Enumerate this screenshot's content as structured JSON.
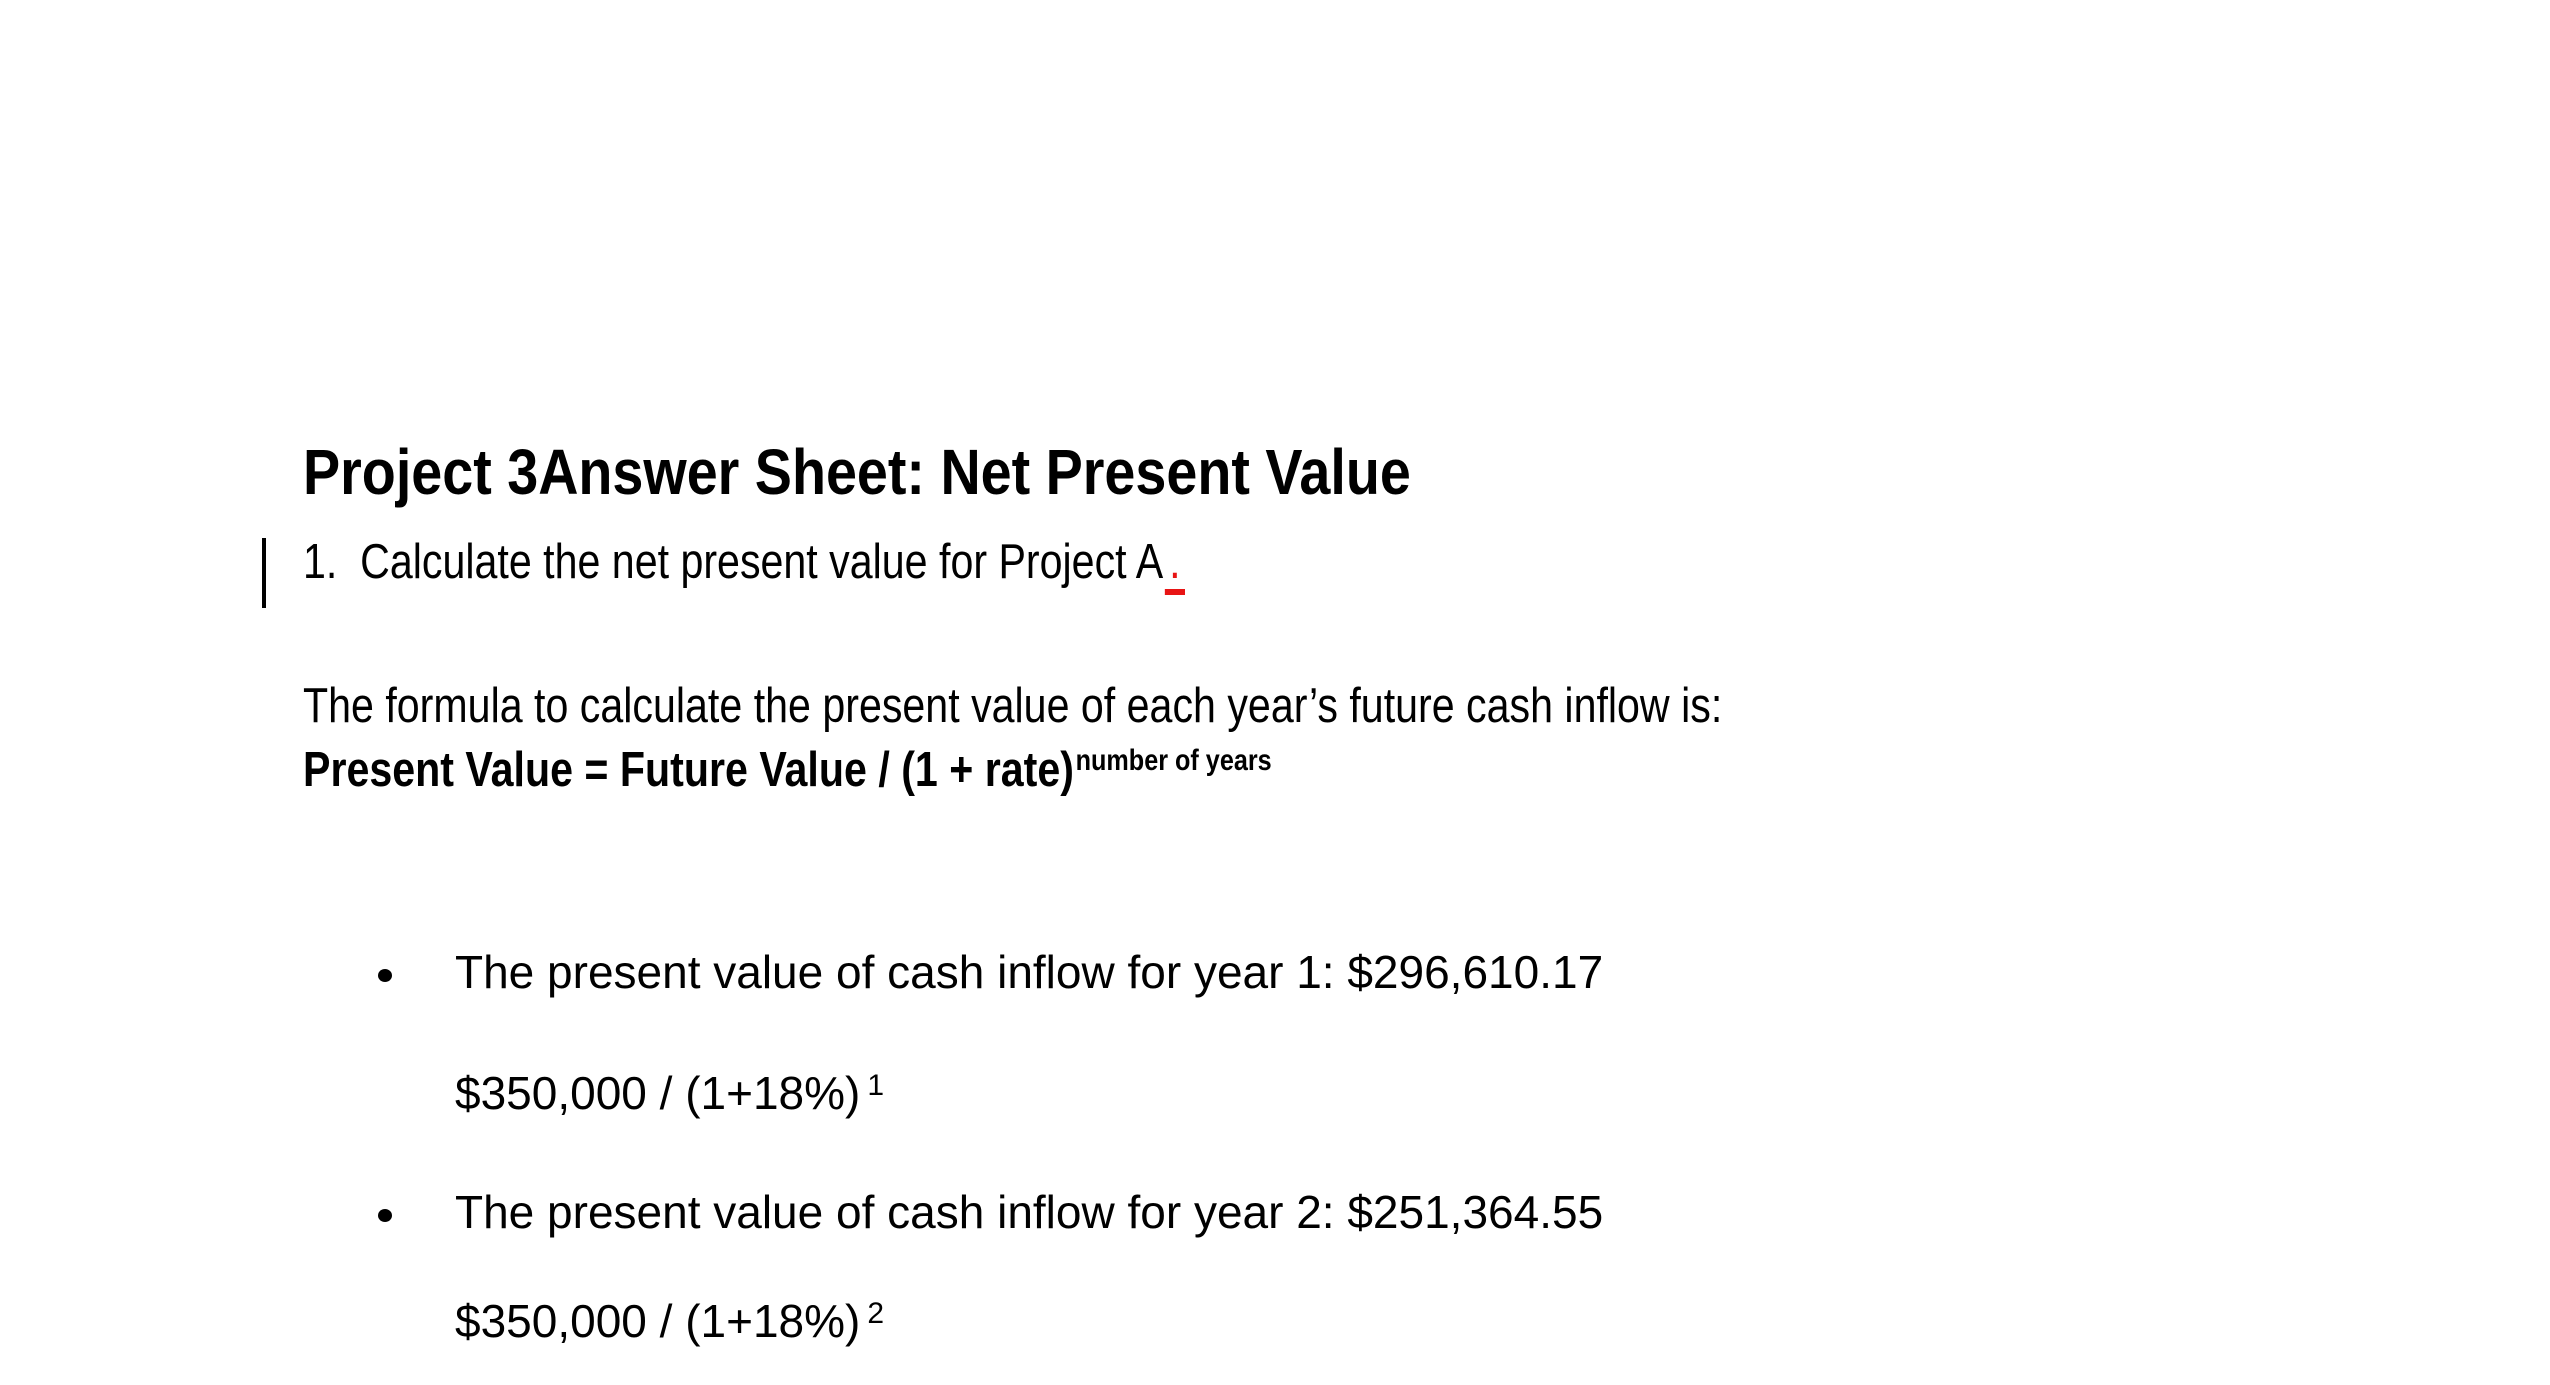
{
  "document": {
    "title": "Project 3Answer Sheet: Net Present Value",
    "item1": {
      "number": "1.",
      "text": "Calculate the net present value for Project A",
      "inserted_period": "."
    },
    "intro": "The formula to calculate the present value of each year’s future cash inflow is:",
    "formula": {
      "base": "Present Value = Future Value / (1 + rate)",
      "exponent": "number of years"
    },
    "bullets": [
      {
        "text": "The present value of cash inflow for year 1: $296,610.17",
        "calc_base": "$350,000 / (1+18%)",
        "calc_exponent": "1"
      },
      {
        "text": "The present value of cash inflow for year 2: $251,364.55",
        "calc_base": "$350,000 / (1+18%)",
        "calc_exponent": "2"
      }
    ],
    "colors": {
      "text": "#000000",
      "tracked_change": "#e81414",
      "background": "#ffffff"
    }
  }
}
